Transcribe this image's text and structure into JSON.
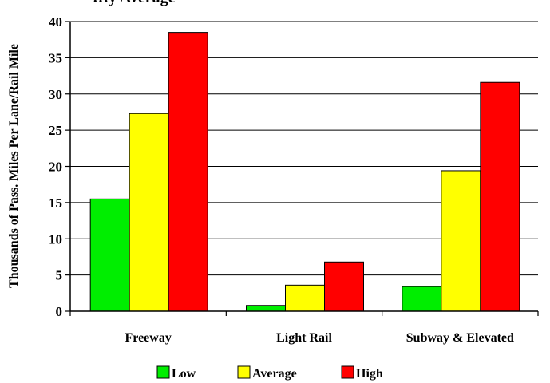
{
  "chart_data": {
    "type": "bar",
    "title": "…y Average",
    "ylabel": "Thousands of Pass. Miles Per Lane/Rail Mile",
    "xlabel": "",
    "categories": [
      "Freeway",
      "Light Rail",
      "Subway & Elevated"
    ],
    "ylim": [
      0,
      40
    ],
    "yticks": [
      0,
      5,
      10,
      15,
      20,
      25,
      30,
      35,
      40
    ],
    "grid": true,
    "legend_position": "bottom",
    "series": [
      {
        "name": "Low",
        "color": "#00ee00",
        "values": [
          15.5,
          0.8,
          3.4
        ]
      },
      {
        "name": "Average",
        "color": "#ffff00",
        "values": [
          27.3,
          3.6,
          19.4
        ]
      },
      {
        "name": "High",
        "color": "#ff0000",
        "values": [
          38.5,
          6.8,
          31.6
        ]
      }
    ]
  }
}
